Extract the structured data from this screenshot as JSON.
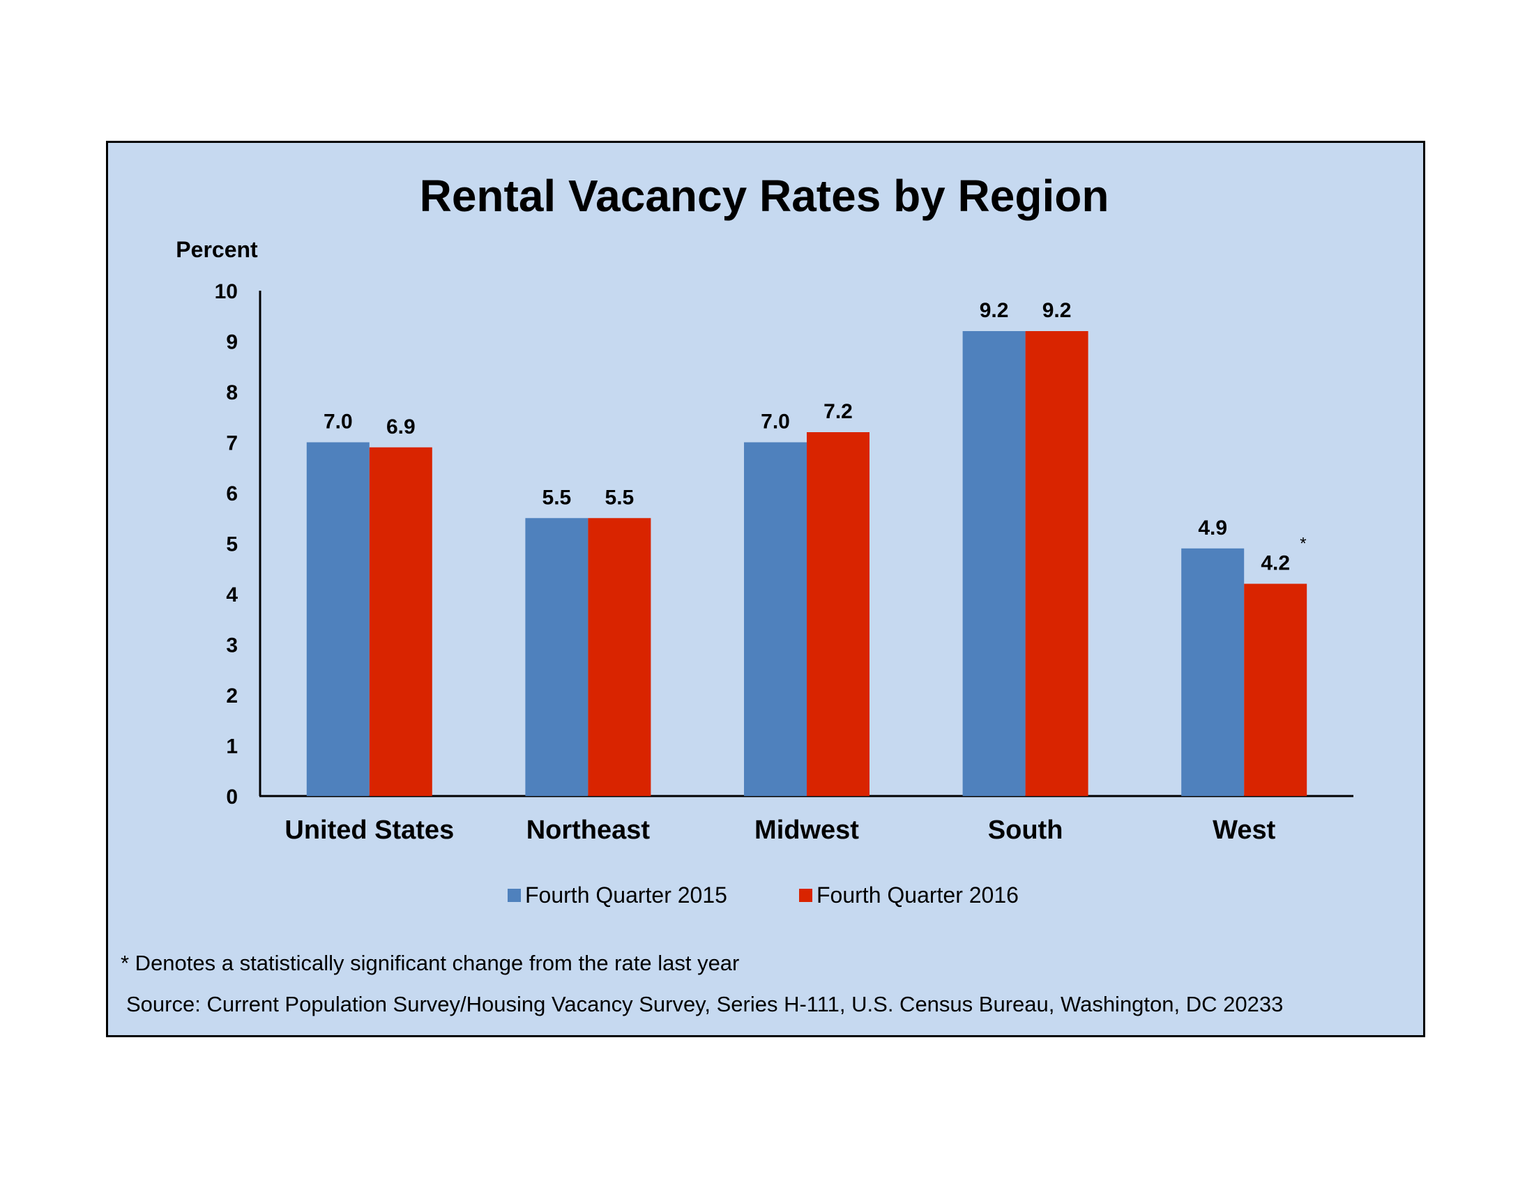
{
  "chart_data": {
    "type": "bar",
    "title": "Rental Vacancy Rates by Region",
    "ylabel": "Percent",
    "ylim": [
      0,
      10
    ],
    "yticks": [
      "0",
      "1",
      "2",
      "3",
      "4",
      "5",
      "6",
      "7",
      "8",
      "9",
      "10"
    ],
    "categories": [
      "United States",
      "Northeast",
      "Midwest",
      "South",
      "West"
    ],
    "series": [
      {
        "name": "Fourth Quarter 2015",
        "color": "#4f81bd",
        "values": [
          7.0,
          5.5,
          7.0,
          9.2,
          4.9
        ],
        "labels": [
          "7.0",
          "5.5",
          "7.0",
          "9.2",
          "4.9"
        ],
        "markers": [
          "",
          "",
          "",
          "",
          ""
        ]
      },
      {
        "name": "Fourth Quarter 2016",
        "color": "#d92400",
        "values": [
          6.9,
          5.5,
          7.2,
          9.2,
          4.2
        ],
        "labels": [
          "6.9",
          "5.5",
          "7.2",
          "9.2",
          "4.2"
        ],
        "markers": [
          "",
          "",
          "",
          "",
          "*"
        ]
      }
    ],
    "legend_position": "bottom",
    "grid": false,
    "footnote": "* Denotes a statistically significant change from the rate last year",
    "source": "Source: Current Population Survey/Housing Vacancy Survey, Series H-111, U.S. Census Bureau, Washington, DC 20233"
  },
  "colors": {
    "background": "#c6d9f0",
    "border": "#000000"
  }
}
